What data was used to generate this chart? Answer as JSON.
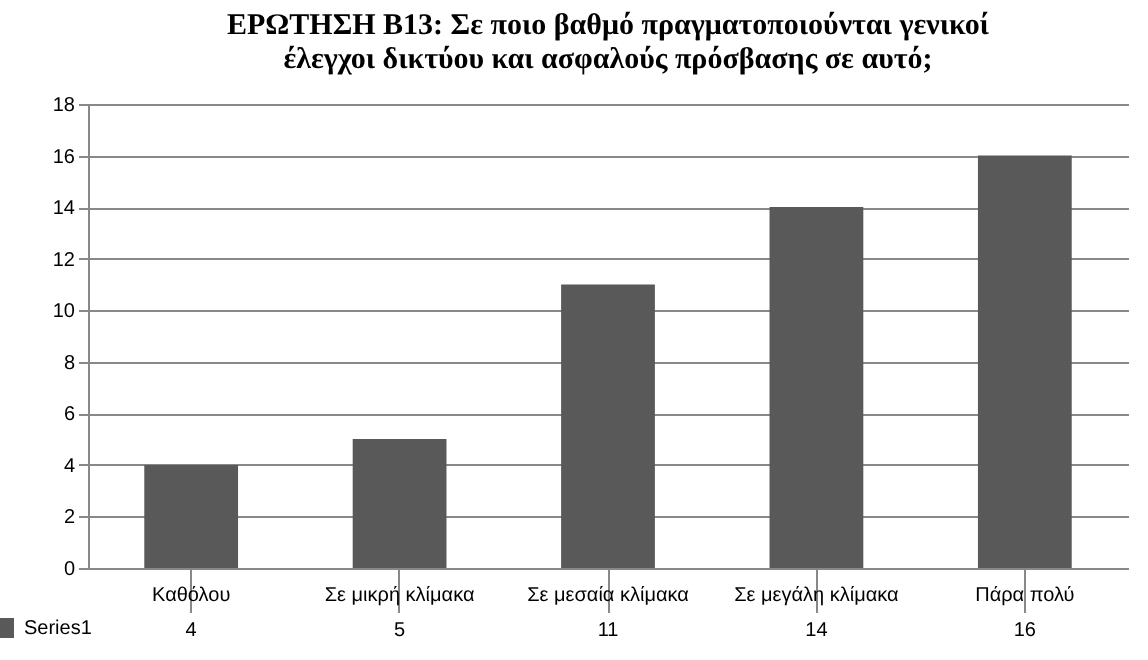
{
  "chart_data": {
    "type": "bar",
    "title": "ΕΡΩΤΗΣΗ Β13: Σε ποιο βαθμό πραγματοποιούνται γενικοί\nέλεγχοι δικτύου και ασφαλούς πρόσβασης σε αυτό;",
    "categories": [
      "Καθόλου",
      "Σε μικρή κλίμακα",
      "Σε μεσαία κλίμακα",
      "Σε μεγάλη  κλίμακα",
      "Πάρα πολύ"
    ],
    "series": [
      {
        "name": "Series1",
        "color": "#595959",
        "values": [
          4,
          5,
          11,
          14,
          16
        ]
      }
    ],
    "ylim": [
      0,
      18
    ],
    "yticks": [
      0,
      2,
      4,
      6,
      8,
      10,
      12,
      14,
      16,
      18
    ],
    "grid": "y",
    "legend": "bottom left",
    "data_labels": true
  }
}
